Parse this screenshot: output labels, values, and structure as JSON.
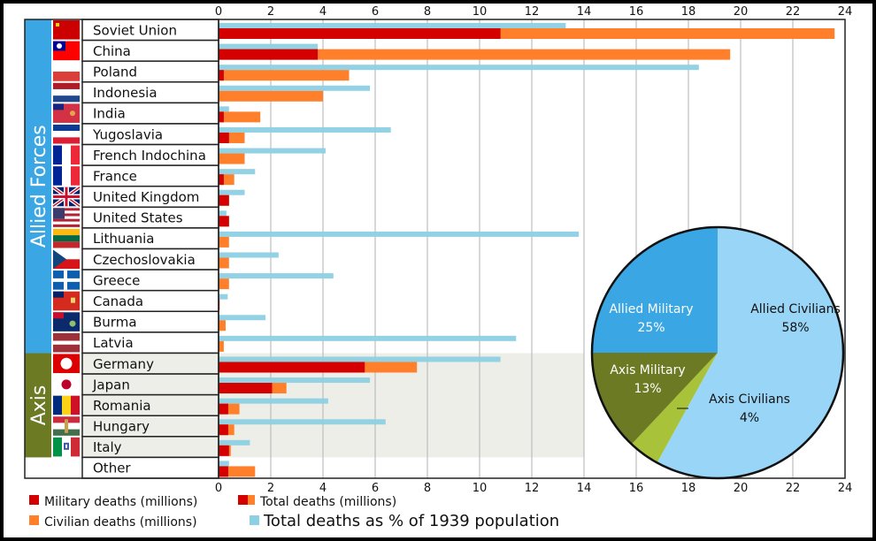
{
  "chart_data": {
    "type": "bar",
    "orientation": "horizontal",
    "xlim": [
      0,
      24
    ],
    "xticks": [
      0,
      2,
      4,
      6,
      8,
      10,
      12,
      14,
      16,
      18,
      20,
      22,
      24
    ],
    "grid": true,
    "groups": [
      {
        "label": "Allied Forces",
        "color": "#3aa7e4",
        "start": 0,
        "end": 15
      },
      {
        "label": "Axis",
        "color": "#6b7a23",
        "start": 16,
        "end": 20
      }
    ],
    "categories": [
      "Soviet Union",
      "China",
      "Poland",
      "Indonesia",
      "India",
      "Yugoslavia",
      "French Indochina",
      "France",
      "United Kingdom",
      "United States",
      "Lithuania",
      "Czechoslovakia",
      "Greece",
      "Canada",
      "Burma",
      "Latvia",
      "Germany",
      "Japan",
      "Romania",
      "Hungary",
      "Italy",
      "Other"
    ],
    "flags": [
      "soviet-union-flag",
      "china-flag",
      "poland-flag",
      "netherlands-flag",
      "india-flag",
      "yugoslavia-flag",
      "france-flag",
      "france-flag",
      "united-kingdom-flag",
      "united-states-flag",
      "lithuania-flag",
      "czechoslovakia-flag",
      "greece-flag",
      "canada-flag",
      "burma-flag",
      "latvia-flag",
      "germany-flag",
      "japan-flag",
      "romania-flag",
      "hungary-flag",
      "italy-flag",
      ""
    ],
    "series": [
      {
        "name": "Military deaths (millions)",
        "color": "#d40000",
        "values": [
          10.8,
          3.8,
          0.2,
          0,
          0.2,
          0.4,
          0,
          0.2,
          0.4,
          0.4,
          0,
          0,
          0,
          0.04,
          0,
          0,
          5.6,
          2.05,
          0.37,
          0.37,
          0.4,
          0.37
        ]
      },
      {
        "name": "Total deaths (millions)",
        "color": "#ff7f2a",
        "values": [
          23.6,
          19.6,
          5.0,
          4.0,
          1.6,
          1.0,
          1.0,
          0.6,
          0.4,
          0.4,
          0.4,
          0.4,
          0.4,
          0.04,
          0.27,
          0.2,
          7.6,
          2.6,
          0.8,
          0.6,
          0.47,
          1.4
        ]
      },
      {
        "name": "Total deaths as % of 1939 population",
        "color": "#8dd0e3",
        "values": [
          13.3,
          3.8,
          18.4,
          5.8,
          0.4,
          6.6,
          4.1,
          1.4,
          1.0,
          0.3,
          13.8,
          2.3,
          4.4,
          0.35,
          1.8,
          11.4,
          10.8,
          5.8,
          4.2,
          6.4,
          1.2,
          0.4
        ]
      }
    ],
    "legend": {
      "placement": "bottom-left",
      "items": [
        {
          "label": "Military deaths (millions)",
          "colors": [
            "#d40000"
          ]
        },
        {
          "label": "Total deaths (millions)",
          "colors": [
            "#d40000",
            "#ff7f2a"
          ]
        },
        {
          "label": "Civilian deaths (millions)",
          "colors": [
            "#ff7f2a"
          ]
        },
        {
          "label": "Total deaths as % of 1939 population",
          "colors": [
            "#8dd0e3"
          ]
        }
      ]
    },
    "pie": {
      "type": "pie",
      "slices": [
        {
          "label": "Allied Civilians",
          "value": 58,
          "display": "58%",
          "color": "#99d5f7",
          "text_color": "#111111"
        },
        {
          "label": "Axis Civilians",
          "value": 4,
          "display": "4%",
          "color": "#a8c23a",
          "text_color": "#111111"
        },
        {
          "label": "Axis Military",
          "value": 13,
          "display": "13%",
          "color": "#6b7a23",
          "text_color": "#ffffff"
        },
        {
          "label": "Allied Military",
          "value": 25,
          "display": "25%",
          "color": "#3aa7e4",
          "text_color": "#ffffff"
        }
      ]
    }
  }
}
